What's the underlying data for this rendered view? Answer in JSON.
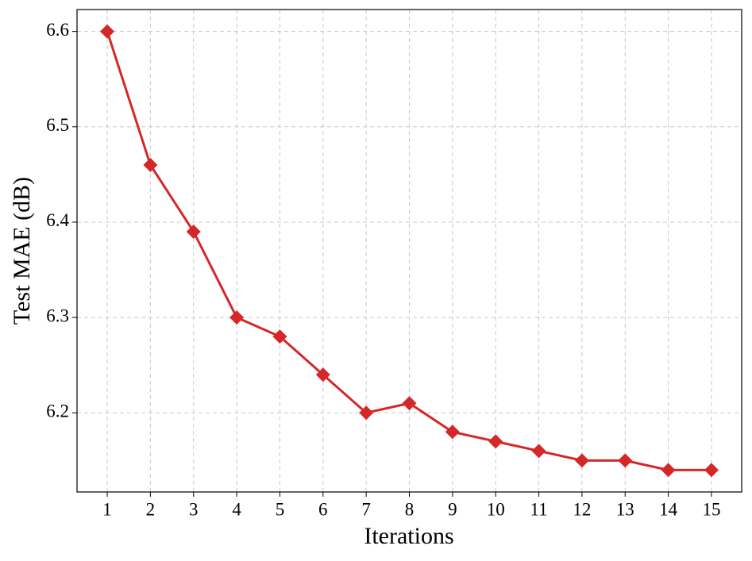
{
  "chart_data": {
    "type": "line",
    "xlabel": "Iterations",
    "ylabel": "Test MAE (dB)",
    "x": [
      1,
      2,
      3,
      4,
      5,
      6,
      7,
      8,
      9,
      10,
      11,
      12,
      13,
      14,
      15
    ],
    "series": [
      {
        "color": "#d62728",
        "marker": "diamond",
        "values": [
          6.6,
          6.46,
          6.39,
          6.3,
          6.28,
          6.24,
          6.2,
          6.21,
          6.18,
          6.17,
          6.16,
          6.15,
          6.15,
          6.14,
          6.14
        ]
      }
    ],
    "xlim": [
      0.3,
      15.7
    ],
    "xticks": [
      1,
      2,
      3,
      4,
      5,
      6,
      7,
      8,
      9,
      10,
      11,
      12,
      13,
      14,
      15
    ],
    "ylim": [
      6.117,
      6.623
    ],
    "yticks": [
      {
        "value": 6.2,
        "label": "6.2"
      },
      {
        "value": 6.3,
        "label": "6.3"
      },
      {
        "value": 6.4,
        "label": "6.4"
      },
      {
        "value": 6.5,
        "label": "6.5"
      },
      {
        "value": 6.6,
        "label": "6.6"
      }
    ],
    "grid": true
  }
}
